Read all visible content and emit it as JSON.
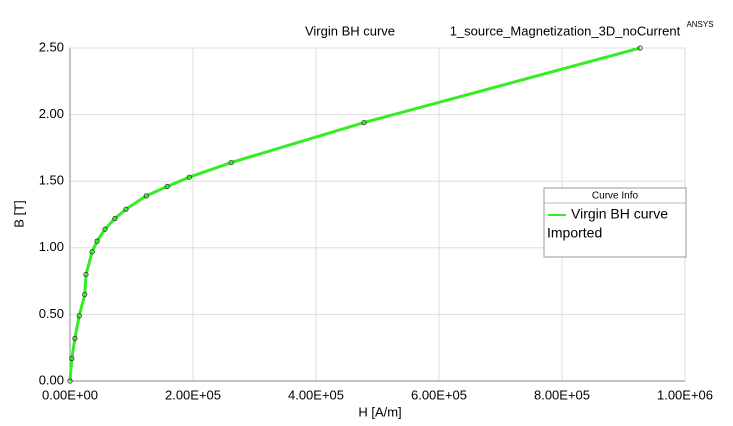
{
  "chart_data": {
    "type": "line",
    "title": "Virgin BH curve",
    "subtitle": "1_source_Magnetization_3D_noCurrent",
    "brand": "ANSYS",
    "x_label": "H [A/m]",
    "y_label": "B [T]",
    "x": [
      0,
      3000,
      8000,
      15000,
      24000,
      26000,
      36000,
      44000,
      57000,
      73000,
      91000,
      124000,
      158000,
      194000,
      262000,
      478000,
      927000
    ],
    "series": [
      {
        "name": "Virgin BH curve",
        "color": "#33ee22",
        "values": [
          0,
          0.17,
          0.32,
          0.49,
          0.65,
          0.8,
          0.97,
          1.05,
          1.14,
          1.22,
          1.29,
          1.39,
          1.46,
          1.53,
          1.64,
          1.94,
          2.5
        ]
      }
    ],
    "legend": {
      "title": "Curve Info",
      "note": "Imported",
      "position": "right"
    },
    "xlim": [
      0,
      1000000
    ],
    "ylim": [
      0,
      2.5
    ],
    "xticks": [
      {
        "value": 0,
        "label": "0.00E+00"
      },
      {
        "value": 200000,
        "label": "2.00E+05"
      },
      {
        "value": 400000,
        "label": "4.00E+05"
      },
      {
        "value": 600000,
        "label": "6.00E+05"
      },
      {
        "value": 800000,
        "label": "8.00E+05"
      },
      {
        "value": 1000000,
        "label": "1.00E+06"
      }
    ],
    "yticks": [
      {
        "value": 0,
        "label": "0.00"
      },
      {
        "value": 0.5,
        "label": "0.50"
      },
      {
        "value": 1,
        "label": "1.00"
      },
      {
        "value": 1.5,
        "label": "1.50"
      },
      {
        "value": 2,
        "label": "2.00"
      },
      {
        "value": 2.5,
        "label": "2.50"
      }
    ],
    "grid": true
  }
}
